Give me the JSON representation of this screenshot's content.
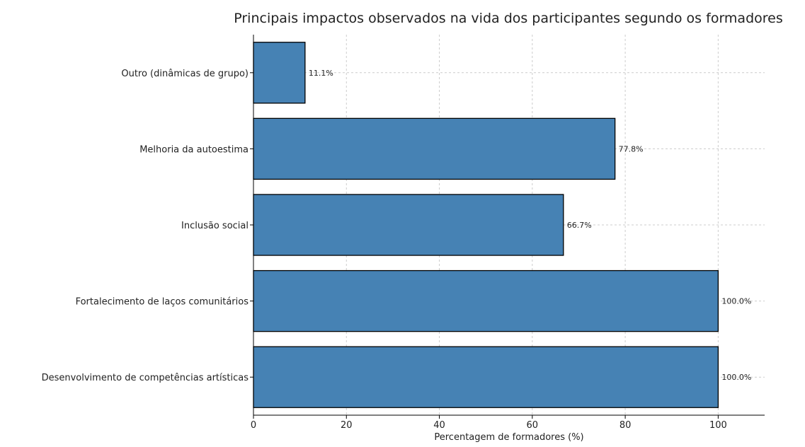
{
  "chart_data": {
    "type": "bar",
    "orientation": "horizontal",
    "title": "Principais impactos observados na vida dos participantes segundo os formadores",
    "xlabel": "Percentagem de formadores (%)",
    "ylabel": "",
    "categories": [
      "Desenvolvimento de competências artísticas",
      "Fortalecimento de laços comunitários",
      "Inclusão social",
      "Melhoria da autoestima",
      "Outro (dinâmicas de grupo)"
    ],
    "values": [
      100.0,
      100.0,
      66.7,
      77.8,
      11.1
    ],
    "data_labels": [
      "100.0%",
      "100.0%",
      "66.7%",
      "77.8%",
      "11.1%"
    ],
    "xlim": [
      0,
      110
    ],
    "xticks": [
      0,
      20,
      40,
      60,
      80,
      100
    ],
    "grid": true,
    "bar_color": "#4682b4"
  }
}
